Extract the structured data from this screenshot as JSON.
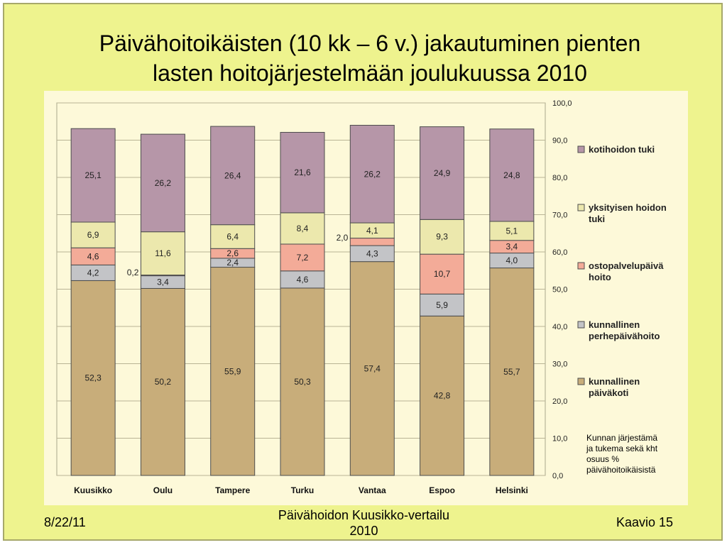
{
  "slide": {
    "title_line1": "Päivähoitoikäisten (10 kk – 6 v.) jakautuminen pienten",
    "title_line2": "lasten hoitojärjestelmään joulukuussa 2010",
    "footer_date": "8/22/11",
    "footer_center_line1": "Päivähoidon Kuusikko-vertailu",
    "footer_center_line2": "2010",
    "footer_right": "Kaavio 15",
    "note_lines": [
      "Kunnan järjestämä",
      "ja tukema sekä kht",
      "osuus %",
      "päivähoitoikäisistä"
    ]
  },
  "chart_data": {
    "type": "bar",
    "stacked": true,
    "categories": [
      "Kuusikko",
      "Oulu",
      "Tampere",
      "Turku",
      "Vantaa",
      "Espoo",
      "Helsinki"
    ],
    "series": [
      {
        "name": "kunnallinen päiväkoti",
        "legend_lines": [
          "kunnallinen",
          "päiväkoti"
        ],
        "color": "#c8ad7a",
        "values": [
          52.3,
          50.2,
          55.9,
          50.3,
          57.4,
          42.8,
          55.7
        ],
        "labels": [
          "52,3",
          "50,2",
          "55,9",
          "50,3",
          "57,4",
          "42,8",
          "55,7"
        ]
      },
      {
        "name": "kunnallinen perhepäivähoito",
        "legend_lines": [
          "kunnallinen",
          "perhepäivähoito"
        ],
        "color": "#c3c4c7",
        "values": [
          4.2,
          3.4,
          2.4,
          4.6,
          4.3,
          5.9,
          4.0
        ],
        "labels": [
          "4,2",
          "3,4",
          "2,4",
          "4,6",
          "4,3",
          "5,9",
          "4,0"
        ]
      },
      {
        "name": "ostopalvelupäivä hoito",
        "legend_lines": [
          "ostopalvelupäivä",
          "hoito"
        ],
        "color": "#f3ab98",
        "values": [
          4.6,
          0.2,
          2.6,
          7.2,
          2.0,
          10.7,
          3.4
        ],
        "labels": [
          "4,6",
          "0,2",
          "2,6",
          "7,2",
          "2,0",
          "10,7",
          "3,4"
        ]
      },
      {
        "name": "yksityisen hoidon tuki",
        "legend_lines": [
          "yksityisen hoidon",
          "tuki"
        ],
        "color": "#ece8ad",
        "values": [
          6.9,
          11.6,
          6.4,
          8.4,
          4.1,
          9.3,
          5.1
        ],
        "labels": [
          "6,9",
          "11,6",
          "6,4",
          "8,4",
          "4,1",
          "9,3",
          "5,1"
        ]
      },
      {
        "name": "kotihoidon tuki",
        "legend_lines": [
          "kotihoidon tuki"
        ],
        "color": "#b696a8",
        "values": [
          25.1,
          26.2,
          26.4,
          21.6,
          26.2,
          24.9,
          24.8
        ],
        "labels": [
          "25,1",
          "26,2",
          "26,4",
          "21,6",
          "26,2",
          "24,9",
          "24,8"
        ]
      }
    ],
    "ylim": [
      0,
      100
    ],
    "yticks": [
      "0,0",
      "10,0",
      "20,0",
      "30,0",
      "40,0",
      "50,0",
      "60,0",
      "70,0",
      "80,0",
      "90,0",
      "100,0"
    ],
    "y_axis_side": "right",
    "grid": true,
    "legend_position": "right"
  }
}
